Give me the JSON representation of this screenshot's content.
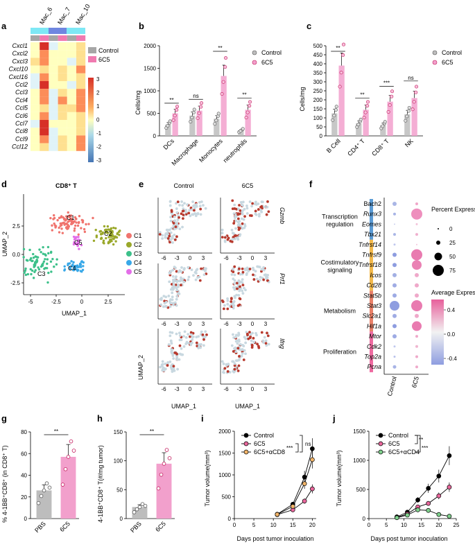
{
  "colors": {
    "control_grey": "#bdbdbd",
    "treat_pink": "#f2a0cc",
    "dot_pink": "#e8679c",
    "line_orange": "#f2b56a",
    "line_green": "#7fd08c",
    "umap_grey": "#c8d8e0",
    "umap_red": "#b83a2e"
  },
  "panels": {
    "a": {
      "letter": "a",
      "columns": [
        "Mac_6",
        "Mac_7",
        "Mac_10"
      ],
      "rows": [
        "Cxcl1",
        "Cxcl2",
        "Cxcl3",
        "Cxcl10",
        "Cxcl16",
        "Ccl2",
        "Ccl3",
        "Ccl4",
        "Ccl5",
        "Ccl6",
        "Ccl7",
        "Ccl8",
        "Ccl9",
        "Ccl12"
      ],
      "legend": [
        "Control",
        "6C5"
      ],
      "scale_ticks": [
        "3",
        "2",
        "1",
        "0",
        "-1",
        "-2",
        "-3"
      ]
    },
    "b": {
      "letter": "b",
      "ylabel": "Cells/mg",
      "yticks": [
        "0",
        "500",
        "1000",
        "1500",
        "2000"
      ],
      "categories": [
        "DCs",
        "Macrophage",
        "Monocytes",
        "neutrophils"
      ],
      "sig": [
        "**",
        "ns",
        "**",
        "**"
      ],
      "legend": [
        "Control",
        "6C5"
      ]
    },
    "c": {
      "letter": "c",
      "ylabel": "Cells/mg",
      "yticks": [
        "0",
        "50",
        "100",
        "150",
        "200",
        "250",
        "300",
        "350",
        "400",
        "450",
        "500"
      ],
      "categories": [
        "B Cell",
        "CD4⁺ T",
        "CD8⁺ T",
        "NK"
      ],
      "sig": [
        "**",
        "**",
        "***",
        "ns"
      ],
      "legend": [
        "Control",
        "6C5"
      ]
    },
    "d": {
      "letter": "d",
      "title": "CD8⁺ T",
      "xlabel": "UMAP_1",
      "ylabel": "UMAP_2",
      "xticks": [
        "-5",
        "-2.5",
        "0",
        "2.5"
      ],
      "yticks": [
        "2.5",
        "0.0",
        "-2.5"
      ],
      "clusters": [
        {
          "name": "C1",
          "color": "#f0746e"
        },
        {
          "name": "C2",
          "color": "#9aa82a"
        },
        {
          "name": "C3",
          "color": "#3cc08a"
        },
        {
          "name": "C4",
          "color": "#38a8e8"
        },
        {
          "name": "C5",
          "color": "#e36ee8"
        }
      ]
    },
    "e": {
      "letter": "e",
      "cols": [
        "Control",
        "6C5"
      ],
      "genes": [
        "Gzmb",
        "Prf1",
        "Ifng"
      ],
      "xlabel": "UMAP_1",
      "ylabel": "UMAP_2",
      "xticks": [
        "-6",
        "-3",
        "0",
        "3"
      ]
    },
    "f": {
      "letter": "f",
      "groups": [
        "Transcription regulation",
        "Costimulatory signaling",
        "Metabolism",
        "Proliferation"
      ],
      "group_colors": [
        "#5b9bd5",
        "#f2b84b",
        "#e98068",
        "#ee6aa0"
      ],
      "genes": [
        "Bach2",
        "Runx3",
        "Eomes",
        "Tbx21",
        "Tnfrsf14",
        "Tnfrsf9",
        "Tnfrsf18",
        "Icos",
        "Cd28",
        "Stat5b",
        "Stat3",
        "Slc2a1",
        "Hif1a",
        "Mtor",
        "Cdk2",
        "Top2a",
        "Pcna"
      ],
      "xcats": [
        "Control",
        "6C5"
      ],
      "size_title": "Percent Expressed",
      "size_ticks": [
        "0",
        "25",
        "50",
        "75"
      ],
      "color_title": "Average Expression",
      "color_ticks": [
        "0.4",
        "0.0",
        "-0.4"
      ]
    },
    "g": {
      "letter": "g",
      "ylabel": "% 4-1BB⁺CD8⁺ (in CD8⁺ T)",
      "yticks": [
        "0",
        "20",
        "40",
        "60",
        "80"
      ],
      "categories": [
        "PBS",
        "6C5"
      ],
      "values": [
        26,
        57
      ],
      "sig": "**"
    },
    "h": {
      "letter": "h",
      "ylabel": "4-1BB⁺CD8⁺ T(#/mg tumor)",
      "yticks": [
        "0",
        "50",
        "100",
        "150"
      ],
      "categories": [
        "PBS",
        "6C5"
      ],
      "values": [
        20,
        95
      ],
      "sig": "**"
    },
    "i": {
      "letter": "i",
      "ylabel": "Tumor volume(mm³)",
      "xlabel": "Days post tumor inoculation",
      "xticks": [
        "0",
        "5",
        "10",
        "15",
        "20"
      ],
      "yticks": [
        "0",
        "500",
        "1000",
        "1500",
        "2000"
      ],
      "legend": [
        "Control",
        "6C5",
        "6C5+αCD8"
      ],
      "sig": [
        "***",
        "ns"
      ]
    },
    "j": {
      "letter": "j",
      "ylabel": "Tumor volume(mm³)",
      "xlabel": "Days post tumor inoculation",
      "xticks": [
        "0",
        "5",
        "10",
        "15",
        "20",
        "25"
      ],
      "yticks": [
        "0",
        "500",
        "1000",
        "1500"
      ],
      "legend": [
        "Control",
        "6C5",
        "6C5+αCD4"
      ],
      "sig": [
        "**",
        "***"
      ]
    }
  },
  "chart_data": [
    {
      "panel": "b",
      "type": "bar",
      "categories": [
        "DCs",
        "Macrophage",
        "Monocytes",
        "neutrophils"
      ],
      "series": [
        {
          "name": "Control",
          "values": [
            250,
            450,
            380,
            120
          ]
        },
        {
          "name": "6C5",
          "values": [
            500,
            560,
            1330,
            580
          ]
        }
      ],
      "ylabel": "Cells/mg",
      "ylim": [
        0,
        2000
      ]
    },
    {
      "panel": "c",
      "type": "bar",
      "categories": [
        "B Cell",
        "CD4⁺ T",
        "CD8⁺ T",
        "NK"
      ],
      "series": [
        {
          "name": "Control",
          "values": [
            125,
            70,
            60,
            120
          ]
        },
        {
          "name": "6C5",
          "values": [
            390,
            145,
            190,
            210
          ]
        }
      ],
      "ylabel": "Cells/mg",
      "ylim": [
        0,
        500
      ]
    },
    {
      "panel": "g",
      "type": "bar",
      "categories": [
        "PBS",
        "6C5"
      ],
      "values": [
        26,
        57
      ],
      "ylim": [
        0,
        80
      ]
    },
    {
      "panel": "h",
      "type": "bar",
      "categories": [
        "PBS",
        "6C5"
      ],
      "values": [
        20,
        95
      ],
      "ylim": [
        0,
        150
      ]
    },
    {
      "panel": "i",
      "type": "line",
      "x": [
        0,
        11,
        15,
        18,
        20
      ],
      "series": [
        {
          "name": "Control",
          "values": [
            0,
            100,
            330,
            950,
            1600
          ]
        },
        {
          "name": "6C5",
          "values": [
            0,
            90,
            200,
            400,
            680
          ]
        },
        {
          "name": "6C5+αCD8",
          "values": [
            0,
            95,
            280,
            800,
            1350
          ]
        }
      ],
      "ylim": [
        0,
        2000
      ],
      "xlim": [
        0,
        21
      ]
    },
    {
      "panel": "j",
      "type": "line",
      "x": [
        0,
        8,
        11,
        14,
        17,
        20,
        23
      ],
      "series": [
        {
          "name": "Control",
          "values": [
            0,
            30,
            110,
            320,
            520,
            730,
            1080
          ]
        },
        {
          "name": "6C5",
          "values": [
            0,
            20,
            80,
            200,
            260,
            390,
            540
          ]
        },
        {
          "name": "6C5+αCD4",
          "values": [
            0,
            15,
            60,
            150,
            140,
            70,
            40
          ]
        }
      ],
      "ylim": [
        0,
        1500
      ],
      "xlim": [
        0,
        25
      ]
    }
  ]
}
